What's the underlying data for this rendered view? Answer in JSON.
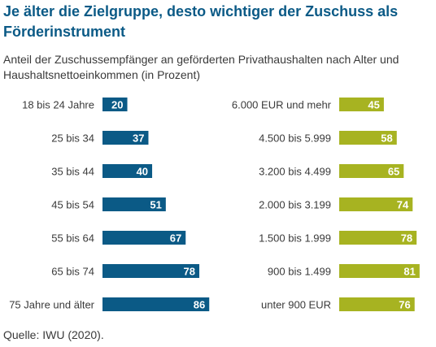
{
  "title": "Je älter die Zielgruppe, desto wichtiger der Zuschuss als Förderinstrument",
  "subtitle": "Anteil der Zuschussempfänger an geförderten Privathaushalten nach Alter und Haushaltsnettoeinkommen (in Prozent)",
  "source": "Quelle: IWU (2020).",
  "colors": {
    "title": "#0b5a86",
    "age_bars": "#0b5a86",
    "income_bars": "#a7b321",
    "text": "#3a3a3a"
  },
  "chart_data": [
    {
      "type": "bar",
      "orientation": "horizontal",
      "categories": [
        "18 bis 24 Jahre",
        "25 bis 34",
        "35 bis 44",
        "45 bis 54",
        "55 bis 64",
        "65 bis 74",
        "75 Jahre und älter"
      ],
      "values": [
        20,
        37,
        40,
        51,
        67,
        78,
        86
      ],
      "color": "#0b5a86",
      "data_labels": true,
      "xlim": [
        0,
        100
      ]
    },
    {
      "type": "bar",
      "orientation": "horizontal",
      "categories": [
        "6.000 EUR und mehr",
        "4.500 bis 5.999",
        "3.200 bis 4.499",
        "2.000 bis 3.199",
        "1.500 bis 1.999",
        "900 bis 1.499",
        "unter 900 EUR"
      ],
      "values": [
        45,
        58,
        65,
        74,
        78,
        81,
        76
      ],
      "color": "#a7b321",
      "data_labels": true,
      "xlim": [
        0,
        100
      ]
    }
  ]
}
